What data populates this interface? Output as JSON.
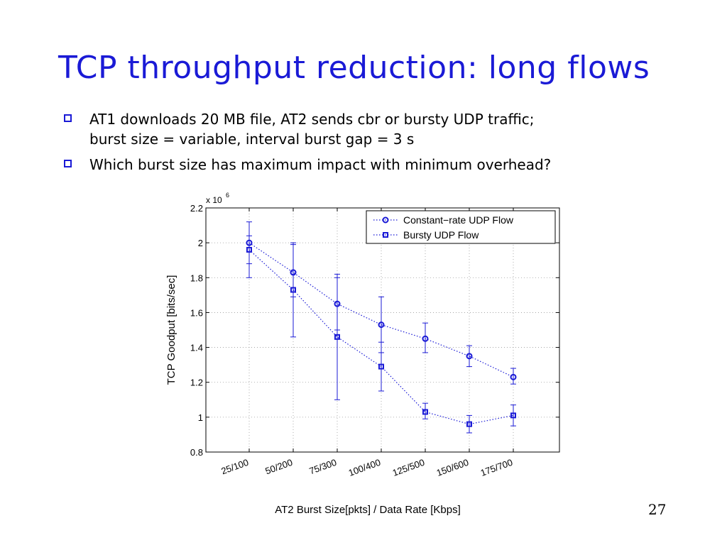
{
  "slide": {
    "title": "TCP throughput reduction: long flows",
    "bullets": [
      {
        "lines": [
          "AT1 downloads 20 MB file, AT2 sends cbr or bursty UDP traffic;",
          "burst size = variable, interval burst gap = 3 s"
        ]
      },
      {
        "lines": [
          "Which burst size has maximum impact with minimum overhead?"
        ]
      }
    ],
    "page_number": "27"
  },
  "colors": {
    "title": "#1a1ad6",
    "series": "#1a1ad6",
    "bullet_box": "#1a1ad6"
  },
  "chart_data": {
    "type": "line",
    "title": "",
    "xlabel": "AT2 Burst Size[pkts] / Data Rate [Kbps]",
    "ylabel": "TCP Goodput [bits/sec]",
    "y_multiplier_label": "x 10",
    "y_multiplier_exp": "6",
    "categories": [
      "25/100",
      "50/200",
      "75/300",
      "100/400",
      "125/500",
      "150/600",
      "175/700"
    ],
    "ylim": [
      0.8,
      2.2
    ],
    "yticks": [
      0.8,
      1,
      1.2,
      1.4,
      1.6,
      1.8,
      2,
      2.2
    ],
    "ytick_labels": [
      "0.8",
      "1",
      "1.2",
      "1.4",
      "1.6",
      "1.8",
      "2",
      "2.2"
    ],
    "grid": true,
    "legend_position": "top-right",
    "series": [
      {
        "name": "Constant−rate UDP Flow",
        "marker": "circle",
        "values": [
          2.0,
          1.83,
          1.65,
          1.53,
          1.45,
          1.35,
          1.23
        ],
        "err_low": [
          1.88,
          1.69,
          1.5,
          1.37,
          1.37,
          1.29,
          1.19
        ],
        "err_high": [
          2.12,
          1.99,
          1.82,
          1.69,
          1.54,
          1.41,
          1.28
        ]
      },
      {
        "name": "Bursty UDP Flow",
        "marker": "square",
        "values": [
          1.96,
          1.73,
          1.46,
          1.29,
          1.03,
          0.96,
          1.01
        ],
        "err_low": [
          1.8,
          1.46,
          1.1,
          1.15,
          0.99,
          0.91,
          0.95
        ],
        "err_high": [
          2.04,
          2.0,
          1.8,
          1.43,
          1.08,
          1.01,
          1.07
        ]
      }
    ]
  }
}
